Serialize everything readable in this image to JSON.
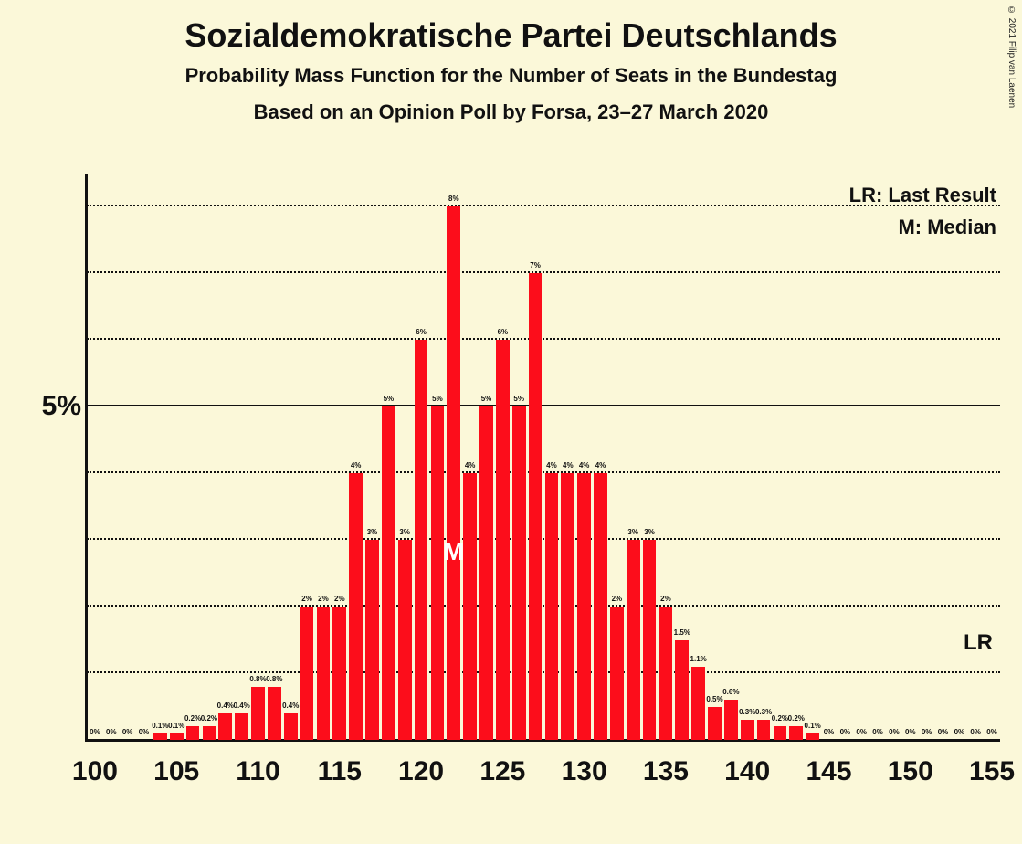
{
  "title": "Sozialdemokratische Partei Deutschlands",
  "subtitle": "Probability Mass Function for the Number of Seats in the Bundestag",
  "subtitle2": "Based on an Opinion Poll by Forsa, 23–27 March 2020",
  "copyright": "© 2021 Filip van Laenen",
  "legend": {
    "lr": "LR: Last Result",
    "m": "M: Median"
  },
  "chart": {
    "type": "bar",
    "background_color": "#fbf8d9",
    "bar_color": "#fc0d1b",
    "text_color": "#111111",
    "x_start": 100,
    "x_end": 155,
    "xticks": [
      100,
      105,
      110,
      115,
      120,
      125,
      130,
      135,
      140,
      145,
      150,
      155
    ],
    "y_major": 5,
    "y_max": 8.5,
    "y_minor_step": 1,
    "ylabel": "5%",
    "median_seat": 122,
    "median_text": "M",
    "lr_text": "LR",
    "lr_value": 1.1,
    "bar_width_ratio": 0.82,
    "bars": [
      {
        "x": 100,
        "v": 0,
        "l": "0%"
      },
      {
        "x": 101,
        "v": 0,
        "l": "0%"
      },
      {
        "x": 102,
        "v": 0,
        "l": "0%"
      },
      {
        "x": 103,
        "v": 0,
        "l": "0%"
      },
      {
        "x": 104,
        "v": 0.1,
        "l": "0.1%"
      },
      {
        "x": 105,
        "v": 0.1,
        "l": "0.1%"
      },
      {
        "x": 106,
        "v": 0.2,
        "l": "0.2%"
      },
      {
        "x": 107,
        "v": 0.2,
        "l": "0.2%"
      },
      {
        "x": 108,
        "v": 0.4,
        "l": "0.4%"
      },
      {
        "x": 109,
        "v": 0.4,
        "l": "0.4%"
      },
      {
        "x": 110,
        "v": 0.8,
        "l": "0.8%"
      },
      {
        "x": 111,
        "v": 0.8,
        "l": "0.8%"
      },
      {
        "x": 112,
        "v": 0.4,
        "l": "0.4%"
      },
      {
        "x": 113,
        "v": 2,
        "l": "2%"
      },
      {
        "x": 114,
        "v": 2,
        "l": "2%"
      },
      {
        "x": 115,
        "v": 2,
        "l": "2%"
      },
      {
        "x": 116,
        "v": 4,
        "l": "4%"
      },
      {
        "x": 117,
        "v": 3,
        "l": "3%"
      },
      {
        "x": 118,
        "v": 5,
        "l": "5%"
      },
      {
        "x": 119,
        "v": 3,
        "l": "3%"
      },
      {
        "x": 120,
        "v": 6,
        "l": "6%"
      },
      {
        "x": 121,
        "v": 5,
        "l": "5%"
      },
      {
        "x": 122,
        "v": 8,
        "l": "8%"
      },
      {
        "x": 123,
        "v": 4,
        "l": "4%"
      },
      {
        "x": 124,
        "v": 5,
        "l": "5%"
      },
      {
        "x": 125,
        "v": 6,
        "l": "6%"
      },
      {
        "x": 126,
        "v": 5,
        "l": "5%"
      },
      {
        "x": 127,
        "v": 7,
        "l": "7%"
      },
      {
        "x": 128,
        "v": 4,
        "l": "4%"
      },
      {
        "x": 129,
        "v": 4,
        "l": "4%"
      },
      {
        "x": 130,
        "v": 4,
        "l": "4%"
      },
      {
        "x": 131,
        "v": 4,
        "l": "4%"
      },
      {
        "x": 132,
        "v": 2,
        "l": "2%"
      },
      {
        "x": 133,
        "v": 3,
        "l": "3%"
      },
      {
        "x": 134,
        "v": 3,
        "l": "3%"
      },
      {
        "x": 135,
        "v": 2,
        "l": "2%"
      },
      {
        "x": 136,
        "v": 1.5,
        "l": "1.5%"
      },
      {
        "x": 137,
        "v": 1.1,
        "l": "1.1%"
      },
      {
        "x": 138,
        "v": 0.5,
        "l": "0.5%"
      },
      {
        "x": 139,
        "v": 0.6,
        "l": "0.6%"
      },
      {
        "x": 140,
        "v": 0.3,
        "l": "0.3%"
      },
      {
        "x": 141,
        "v": 0.3,
        "l": "0.3%"
      },
      {
        "x": 142,
        "v": 0.2,
        "l": "0.2%"
      },
      {
        "x": 143,
        "v": 0.2,
        "l": "0.2%"
      },
      {
        "x": 144,
        "v": 0.1,
        "l": "0.1%"
      },
      {
        "x": 145,
        "v": 0,
        "l": "0%"
      },
      {
        "x": 146,
        "v": 0,
        "l": "0%"
      },
      {
        "x": 147,
        "v": 0,
        "l": "0%"
      },
      {
        "x": 148,
        "v": 0,
        "l": "0%"
      },
      {
        "x": 149,
        "v": 0,
        "l": "0%"
      },
      {
        "x": 150,
        "v": 0,
        "l": "0%"
      },
      {
        "x": 151,
        "v": 0,
        "l": "0%"
      },
      {
        "x": 152,
        "v": 0,
        "l": "0%"
      },
      {
        "x": 153,
        "v": 0,
        "l": "0%"
      },
      {
        "x": 154,
        "v": 0,
        "l": "0%"
      },
      {
        "x": 155,
        "v": 0,
        "l": "0%"
      }
    ]
  }
}
